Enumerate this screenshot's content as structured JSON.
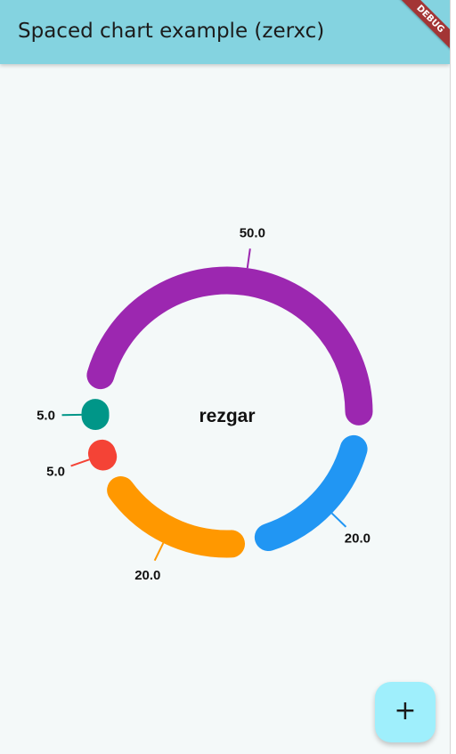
{
  "app_bar": {
    "title": "Spaced chart example (zerxc)"
  },
  "debug_banner": {
    "label": "DEBUG"
  },
  "chart_data": {
    "type": "pie",
    "style": "spaced-donut",
    "center_label": "rezgar",
    "segments": [
      {
        "value": 50.0,
        "label": "50.0",
        "color": "#9c27b0"
      },
      {
        "value": 20.0,
        "label": "20.0",
        "color": "#2196f3"
      },
      {
        "value": 20.0,
        "label": "20.0",
        "color": "#ff9800"
      },
      {
        "value": 5.0,
        "label": "5.0",
        "color": "#f44336"
      },
      {
        "value": 5.0,
        "label": "5.0",
        "color": "#009688"
      }
    ]
  },
  "fab": {
    "icon": "plus-icon",
    "glyph": "+"
  }
}
